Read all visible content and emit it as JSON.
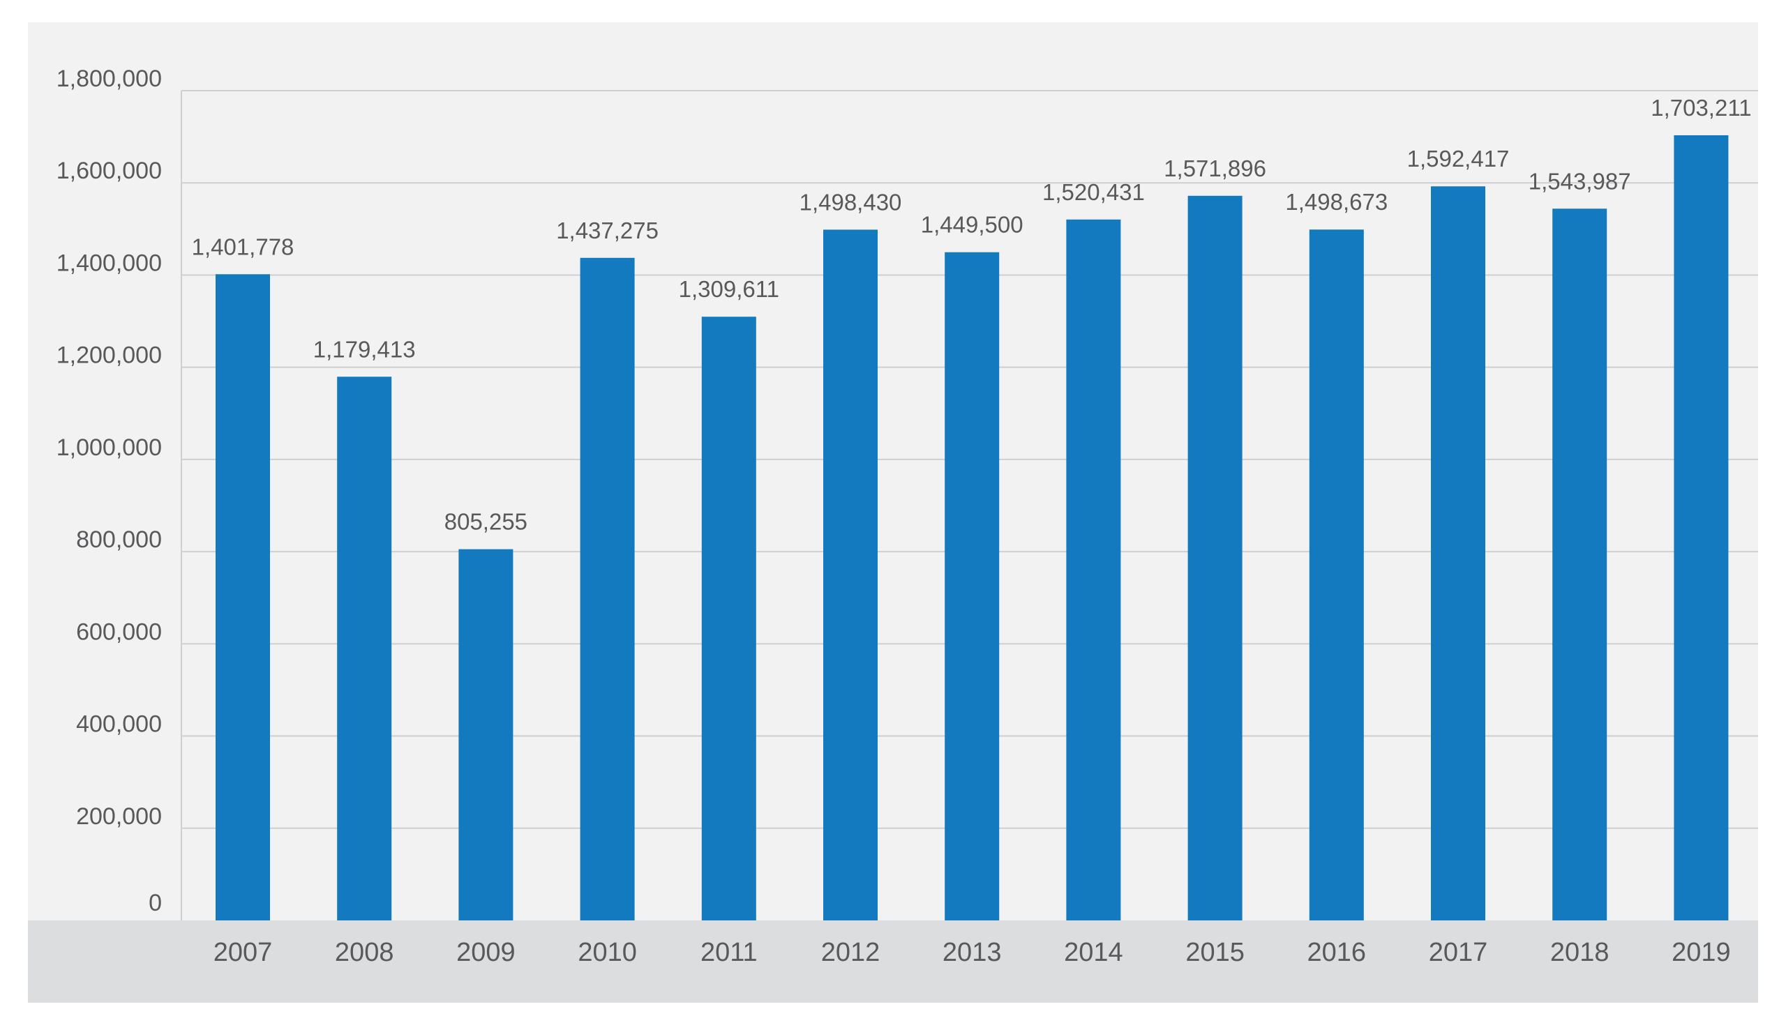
{
  "chart_data": {
    "type": "bar",
    "categories": [
      "2007",
      "2008",
      "2009",
      "2010",
      "2011",
      "2012",
      "2013",
      "2014",
      "2015",
      "2016",
      "2017",
      "2018",
      "2019"
    ],
    "values": [
      1401778,
      1179413,
      805255,
      1437275,
      1309611,
      1498430,
      1449500,
      1520431,
      1571896,
      1498673,
      1592417,
      1543987,
      1703211
    ],
    "data_labels": [
      "1,401,778",
      "1,179,413",
      "805,255",
      "1,437,275",
      "1,309,611",
      "1,498,430",
      "1,449,500",
      "1,520,431",
      "1,571,896",
      "1,498,673",
      "1,592,417",
      "1,543,987",
      "1,703,211"
    ],
    "y_ticks": [
      0,
      200000,
      400000,
      600000,
      800000,
      1000000,
      1200000,
      1400000,
      1600000,
      1800000
    ],
    "y_tick_labels": [
      "0",
      "200,000",
      "400,000",
      "600,000",
      "800,000",
      "1,000,000",
      "1,200,000",
      "1,400,000",
      "1,600,000",
      "1,800,000"
    ],
    "ylim": [
      0,
      1800000
    ],
    "grid": true,
    "legend": "none",
    "title": "",
    "xlabel": "",
    "ylabel": "",
    "colors": {
      "bar": "#137abf",
      "plot_background": "#f2f2f2",
      "axis_band": "#dcdddf",
      "gridline": "#cfcfd1",
      "text": "#58595b"
    }
  }
}
